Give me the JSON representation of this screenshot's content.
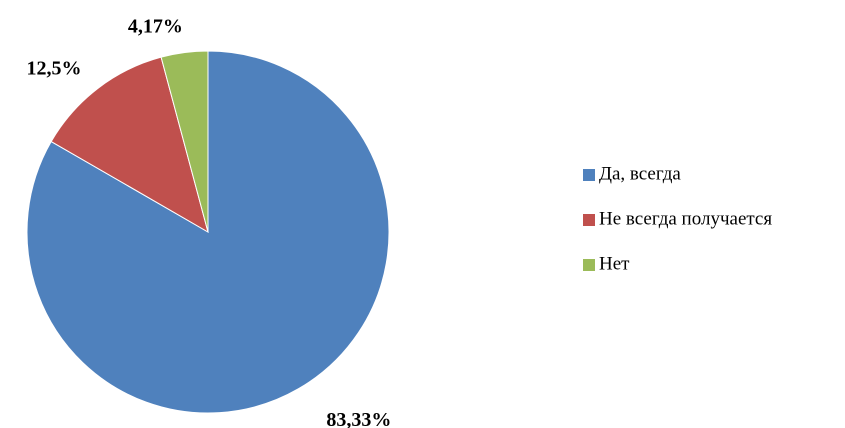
{
  "chart_data": {
    "type": "pie",
    "categories": [
      "Да, всегда",
      "Не всегда получается",
      "Нет"
    ],
    "values": [
      83.33,
      12.5,
      4.17
    ],
    "value_labels": [
      "83,33%",
      "12,5%",
      "4,17%"
    ],
    "colors": [
      "#4f81bd",
      "#c0504d",
      "#9bbb59"
    ],
    "legend": "right"
  }
}
